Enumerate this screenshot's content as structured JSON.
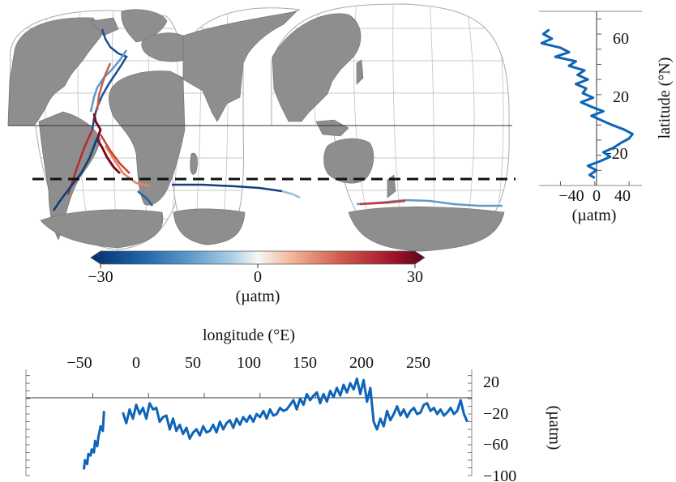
{
  "colors": {
    "line": "#0d64b8",
    "land": "#8e8e8e",
    "map_ocean": "#ffffff",
    "colormap": [
      "#062f6b",
      "#1f63a8",
      "#5e9ccc",
      "#a9cde3",
      "#f7f7f7",
      "#f3b699",
      "#d05a4a",
      "#a3152e",
      "#5b0717"
    ]
  },
  "chart_data": [
    {
      "type": "map",
      "description_key": "interrupted-goode-homolosine-tracks",
      "dashed_reference_latitude": -40,
      "equator": 0,
      "colorbar": {
        "range": [
          -30,
          30
        ],
        "tick_labels": [
          "−30",
          "0",
          "30"
        ],
        "unit_label": "(µatm)",
        "extend": "both"
      }
    },
    {
      "type": "line",
      "orientation": "vertical",
      "x_ticks": [
        "−40",
        "0",
        "40"
      ],
      "x_unit_label": "(µatm)",
      "y_ticks": [
        "60",
        "20",
        "−20"
      ],
      "y_label": "latitude (°N)",
      "xlim": [
        -65,
        55
      ],
      "ylim": [
        -40,
        75
      ],
      "latitude": [
        63,
        60,
        57,
        54,
        51,
        48,
        45,
        42,
        39,
        36,
        33,
        30,
        27,
        24,
        21,
        18,
        15,
        12,
        9,
        6,
        3,
        0,
        -3,
        -6,
        -9,
        -12,
        -15,
        -18,
        -21,
        -24,
        -27,
        -30,
        -33,
        -35
      ],
      "value": [
        -53,
        -60,
        -50,
        -62,
        -40,
        -30,
        -46,
        -22,
        -30,
        -12,
        -20,
        -8,
        -22,
        -10,
        -14,
        -2,
        -16,
        -4,
        10,
        -4,
        8,
        20,
        34,
        44,
        40,
        30,
        22,
        10,
        18,
        6,
        -8,
        2,
        -6,
        0
      ]
    },
    {
      "type": "line",
      "orientation": "horizontal",
      "title": "longitude (°E)",
      "x_ticks": [
        "−50",
        "0",
        "50",
        "100",
        "150",
        "200",
        "250"
      ],
      "y_ticks": [
        "20",
        "−20",
        "−60",
        "−100"
      ],
      "y_label": "(µatm)",
      "xlim": [
        -110,
        290
      ],
      "ylim": [
        -100,
        38
      ],
      "segments": [
        {
          "x": [
            -58,
            -57,
            -55,
            -54,
            -52,
            -51,
            -49,
            -48,
            -46,
            -45,
            -43,
            -41,
            -40
          ],
          "y": [
            -92,
            -80,
            -85,
            -72,
            -74,
            -66,
            -70,
            -55,
            -62,
            -50,
            -36,
            -42,
            -16
          ]
        },
        {
          "x": [
            -23,
            -20,
            -17,
            -14,
            -11,
            -8,
            -5,
            -2,
            1,
            4,
            7,
            10,
            13,
            16,
            19,
            22,
            25,
            28,
            31,
            34,
            37,
            40,
            43,
            46,
            49,
            52,
            55,
            58,
            61,
            64,
            67,
            70,
            73,
            76,
            79,
            82,
            85,
            88,
            91,
            94,
            97,
            100,
            103,
            106,
            109,
            112,
            115,
            118,
            121,
            124,
            127,
            130,
            133,
            136,
            139,
            142,
            145,
            148,
            151,
            154,
            157,
            160,
            163,
            166,
            169,
            172,
            175,
            178,
            181,
            184,
            187,
            190,
            193,
            196,
            199,
            202,
            205,
            208,
            211,
            214,
            217,
            220,
            223,
            226,
            229,
            232,
            235,
            238,
            241,
            244,
            247,
            250,
            253,
            256,
            259,
            262,
            265,
            268,
            271,
            274,
            277,
            280,
            283,
            286
          ],
          "y": [
            -18,
            -32,
            -14,
            -26,
            -8,
            -20,
            -12,
            -26,
            -6,
            -14,
            -12,
            -30,
            -24,
            -22,
            -40,
            -26,
            -42,
            -34,
            -46,
            -38,
            -52,
            -44,
            -40,
            -48,
            -36,
            -44,
            -42,
            -34,
            -44,
            -30,
            -40,
            -32,
            -28,
            -38,
            -26,
            -34,
            -24,
            -30,
            -22,
            -30,
            -20,
            -24,
            -16,
            -26,
            -14,
            -22,
            -20,
            -12,
            -16,
            -14,
            -8,
            -2,
            -14,
            0,
            -8,
            6,
            -2,
            4,
            8,
            -6,
            6,
            -4,
            10,
            2,
            14,
            4,
            18,
            8,
            20,
            12,
            26,
            6,
            24,
            -4,
            14,
            -30,
            -40,
            -26,
            -36,
            -16,
            -28,
            -20,
            -10,
            -22,
            -14,
            -24,
            -16,
            -12,
            -20,
            -18,
            -8,
            -6,
            -16,
            -12,
            -20,
            -14,
            -22,
            -18,
            -12,
            -20,
            -16,
            -2,
            -20,
            -30
          ]
        }
      ]
    }
  ]
}
